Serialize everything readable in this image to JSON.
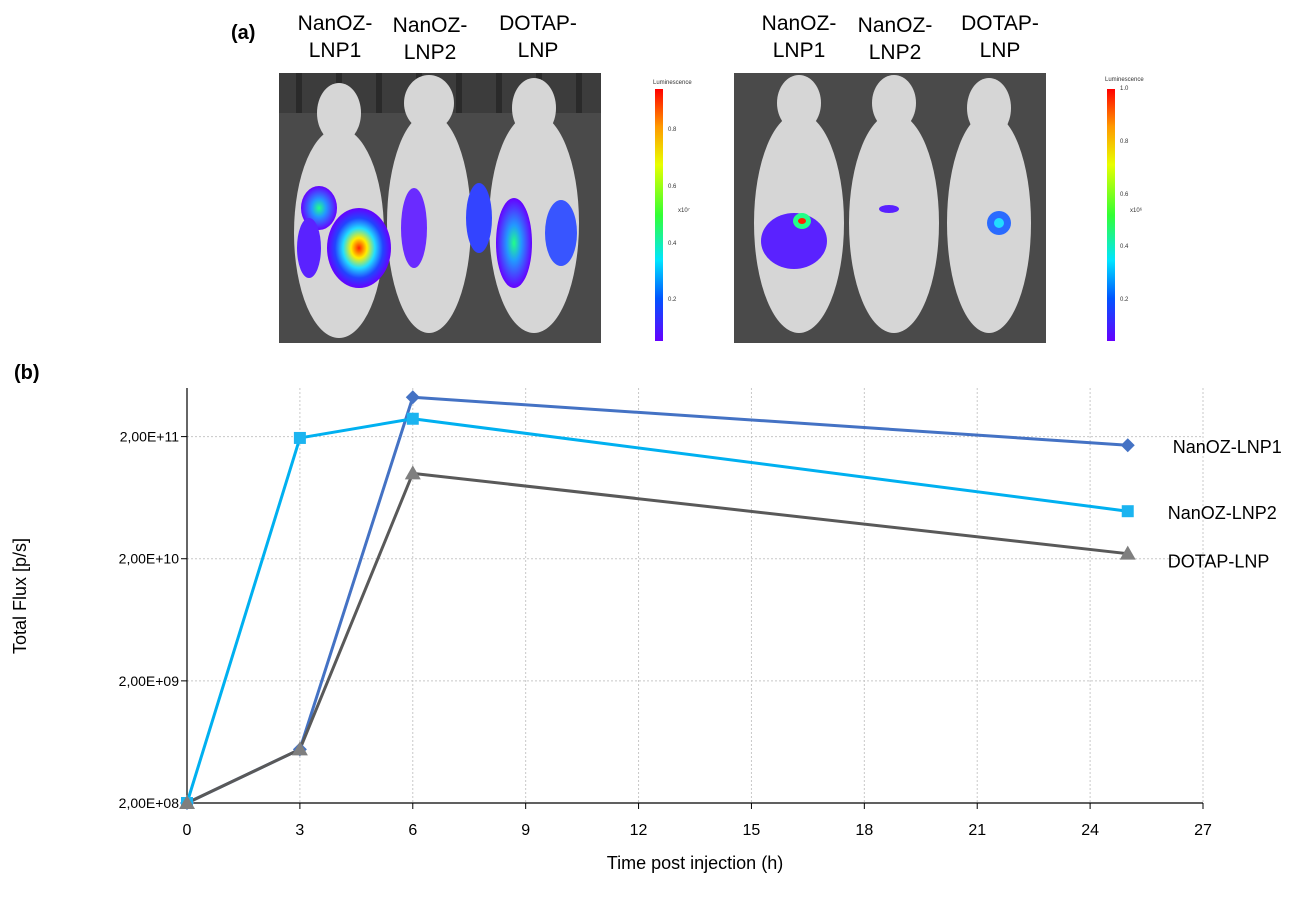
{
  "panel_a": {
    "label": "(a)",
    "groups": [
      {
        "labels": [
          "NanOZ-\nLNP1",
          "NanOZ-\nLNP2",
          "DOTAP-\nLNP"
        ]
      },
      {
        "labels": [
          "NanOZ-\nLNP1",
          "NanOZ-\nLNP2",
          "DOTAP-\nLNP"
        ]
      }
    ],
    "scales": [
      {
        "title": "Luminescence",
        "ticks": [
          "0.8",
          "0.6",
          "0.4",
          "0.2"
        ],
        "unit": "x10⁷"
      },
      {
        "title": "Luminescence",
        "ticks": [
          "1.0",
          "0.8",
          "0.6",
          "0.4",
          "0.2"
        ],
        "unit": "x10⁶"
      }
    ],
    "colors": {
      "photo_bg": "#4a4a4a",
      "mouse": "#d9d9d9"
    }
  },
  "panel_b": {
    "label": "(b)"
  },
  "chart_data": {
    "type": "line",
    "xlabel": "Time post injection (h)",
    "ylabel": "Total Flux [p/s]",
    "xlim": [
      0,
      27
    ],
    "xticks": [
      0,
      3,
      6,
      9,
      12,
      15,
      18,
      21,
      24,
      27
    ],
    "ylog": true,
    "ylim": [
      200000000,
      500000000000
    ],
    "yticks": [
      200000000,
      2000000000,
      20000000000,
      200000000000
    ],
    "ytick_labels": [
      "2,00E+08",
      "2,00E+09",
      "2,00E+10",
      "2,00E+11"
    ],
    "grid": true,
    "legend": "labels at line ends (right)",
    "series": [
      {
        "name": "NanOZ-LNP1",
        "color": "#4472c4",
        "marker": "diamond",
        "x": [
          0,
          3,
          6,
          25
        ],
        "y": [
          200000000,
          550000000,
          420000000000,
          170000000000
        ]
      },
      {
        "name": "NanOZ-LNP2",
        "color": "#00b0f0",
        "marker": "square",
        "x": [
          0,
          3,
          6,
          25
        ],
        "y": [
          200000000,
          195000000000,
          280000000000,
          49000000000
        ]
      },
      {
        "name": "DOTAP-LNP",
        "color": "#595959",
        "marker": "triangle",
        "x": [
          0,
          3,
          6,
          25
        ],
        "y": [
          200000000,
          550000000,
          100000000000,
          22000000000
        ]
      }
    ],
    "marker_colors": {
      "NanOZ-LNP1": "#4472c4",
      "NanOZ-LNP2": "#1cb4f0",
      "DOTAP-LNP": "#7f7f7f"
    }
  }
}
